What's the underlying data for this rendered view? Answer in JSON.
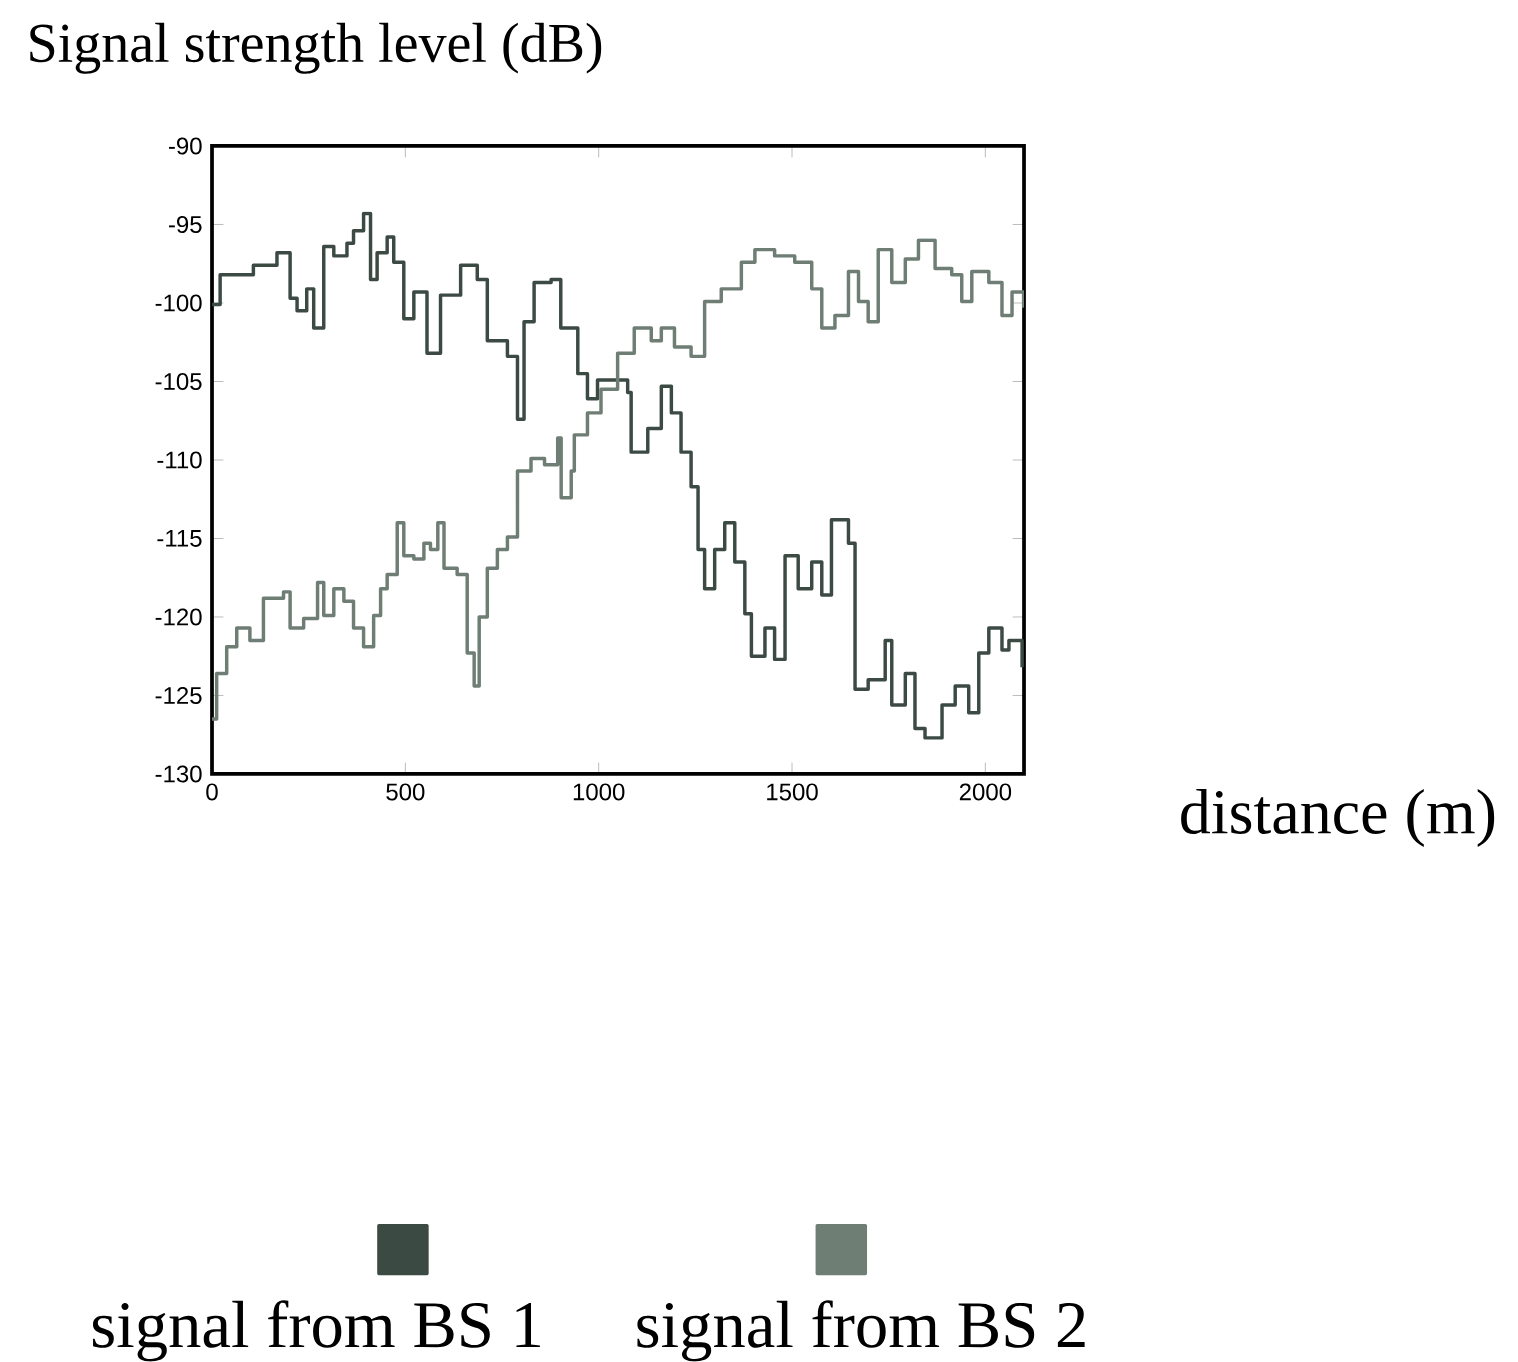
{
  "chart_data": {
    "type": "step",
    "xlabel": "distance (m)",
    "ylabel": "Signal strength level (dB)",
    "xlim": [
      0,
      2100
    ],
    "ylim": [
      -130,
      -90
    ],
    "xticks": [
      0,
      500,
      1000,
      1500,
      2000
    ],
    "yticks": [
      -90,
      -95,
      -100,
      -105,
      -110,
      -115,
      -120,
      -125,
      -130
    ],
    "grid": false,
    "legend": "bottom",
    "series": [
      {
        "name": "signal from BS 1",
        "color": "#3c4a44",
        "x": [
          0,
          21,
          107,
          168,
          202,
          220,
          245,
          263,
          289,
          315,
          349,
          366,
          392,
          410,
          427,
          453,
          470,
          496,
          522,
          556,
          591,
          643,
          686,
          712,
          764,
          790,
          807,
          833,
          877,
          902,
          946,
          971,
          997,
          1041,
          1075,
          1084,
          1127,
          1162,
          1188,
          1213,
          1239,
          1257,
          1274,
          1300,
          1326,
          1352,
          1378,
          1395,
          1430,
          1455,
          1482,
          1516,
          1551,
          1577,
          1602,
          1646,
          1663,
          1697,
          1741,
          1758,
          1793,
          1818,
          1844,
          1888,
          1922,
          1957,
          1983,
          2009,
          2043,
          2061,
          2095
        ],
        "values": [
          -100.1,
          -98.2,
          -97.6,
          -96.8,
          -99.7,
          -100.5,
          -99.1,
          -101.6,
          -96.4,
          -97.0,
          -96.2,
          -95.4,
          -94.3,
          -98.5,
          -96.8,
          -95.8,
          -97.4,
          -101.0,
          -99.3,
          -103.2,
          -99.5,
          -97.6,
          -98.5,
          -102.4,
          -103.4,
          -107.4,
          -101.2,
          -98.7,
          -98.5,
          -101.6,
          -104.5,
          -106.1,
          -104.9,
          -104.9,
          -105.7,
          -109.5,
          -108.0,
          -105.3,
          -107.0,
          -109.5,
          -111.7,
          -115.7,
          -118.2,
          -115.7,
          -114.0,
          -116.5,
          -119.8,
          -122.5,
          -120.7,
          -122.7,
          -116.1,
          -118.2,
          -116.5,
          -118.6,
          -113.8,
          -115.3,
          -124.6,
          -124.0,
          -121.5,
          -125.6,
          -123.6,
          -127.1,
          -127.7,
          -125.6,
          -124.4,
          -126.1,
          -122.3,
          -120.7,
          -122.1,
          -121.5,
          -123.2
        ]
      },
      {
        "name": "signal from BS 2",
        "color": "#6e7e74",
        "x": [
          0,
          12,
          38,
          64,
          98,
          133,
          185,
          202,
          237,
          273,
          289,
          315,
          341,
          366,
          392,
          418,
          436,
          453,
          479,
          496,
          522,
          548,
          565,
          584,
          600,
          634,
          660,
          678,
          691,
          712,
          738,
          764,
          790,
          825,
          860,
          894,
          903,
          929,
          937,
          971,
          1006,
          1049,
          1092,
          1136,
          1162,
          1196,
          1239,
          1274,
          1317,
          1369,
          1404,
          1455,
          1507,
          1551,
          1577,
          1611,
          1646,
          1672,
          1697,
          1723,
          1758,
          1793,
          1827,
          1870,
          1913,
          1939,
          1965,
          2009,
          2043,
          2069,
          2099
        ],
        "values": [
          -126.5,
          -123.6,
          -121.9,
          -120.7,
          -121.5,
          -118.8,
          -118.4,
          -120.7,
          -120.1,
          -117.8,
          -119.9,
          -118.2,
          -119.0,
          -120.7,
          -121.9,
          -119.9,
          -118.2,
          -117.3,
          -114.0,
          -116.1,
          -116.3,
          -115.3,
          -115.7,
          -114.0,
          -116.9,
          -117.3,
          -122.3,
          -124.4,
          -120.0,
          -116.9,
          -115.7,
          -114.9,
          -110.7,
          -109.9,
          -110.3,
          -108.6,
          -112.4,
          -110.7,
          -108.4,
          -107.0,
          -105.5,
          -103.2,
          -101.6,
          -102.4,
          -101.6,
          -102.8,
          -103.4,
          -99.9,
          -99.1,
          -97.4,
          -96.6,
          -97.0,
          -97.4,
          -99.1,
          -101.6,
          -100.8,
          -98.0,
          -99.9,
          -101.2,
          -96.6,
          -98.7,
          -97.2,
          -96.0,
          -97.8,
          -98.2,
          -99.9,
          -98.0,
          -98.7,
          -100.8,
          -99.3,
          -100.3
        ]
      }
    ]
  }
}
